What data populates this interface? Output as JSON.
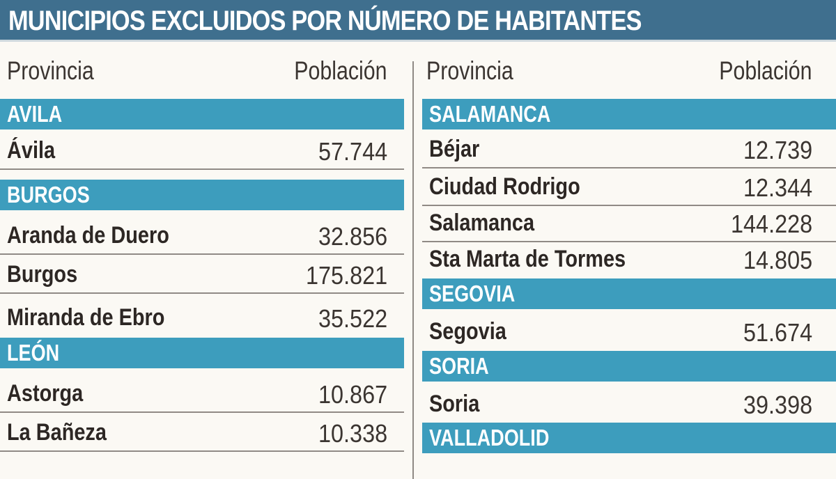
{
  "title": "MUNICIPIOS EXCLUIDOS POR NÚMERO DE HABITANTES",
  "headers": {
    "provincia": "Provincia",
    "poblacion": "Población"
  },
  "left": {
    "groups": [
      {
        "province": "AVILA",
        "rows": [
          {
            "name": "Ávila",
            "population": "57.744"
          }
        ]
      },
      {
        "province": "BURGOS",
        "rows": [
          {
            "name": "Aranda de Duero",
            "population": "32.856"
          },
          {
            "name": "Burgos",
            "population": "175.821"
          },
          {
            "name": "Miranda de Ebro",
            "population": "35.522"
          }
        ]
      },
      {
        "province": "LEÓN",
        "rows": [
          {
            "name": "Astorga",
            "population": "10.867"
          },
          {
            "name": "La Bañeza",
            "population": "10.338"
          }
        ]
      }
    ]
  },
  "right": {
    "groups": [
      {
        "province": "SALAMANCA",
        "rows": [
          {
            "name": "Béjar",
            "population": "12.739"
          },
          {
            "name": "Ciudad Rodrigo",
            "population": "12.344"
          },
          {
            "name": "Salamanca",
            "population": "144.228"
          },
          {
            "name": "Sta Marta de Tormes",
            "population": "14.805"
          }
        ]
      },
      {
        "province": "SEGOVIA",
        "rows": [
          {
            "name": "Segovia",
            "population": "51.674"
          }
        ]
      },
      {
        "province": "SORIA",
        "rows": [
          {
            "name": "Soria",
            "population": "39.398"
          }
        ]
      },
      {
        "province": "VALLADOLID",
        "rows": []
      }
    ]
  }
}
